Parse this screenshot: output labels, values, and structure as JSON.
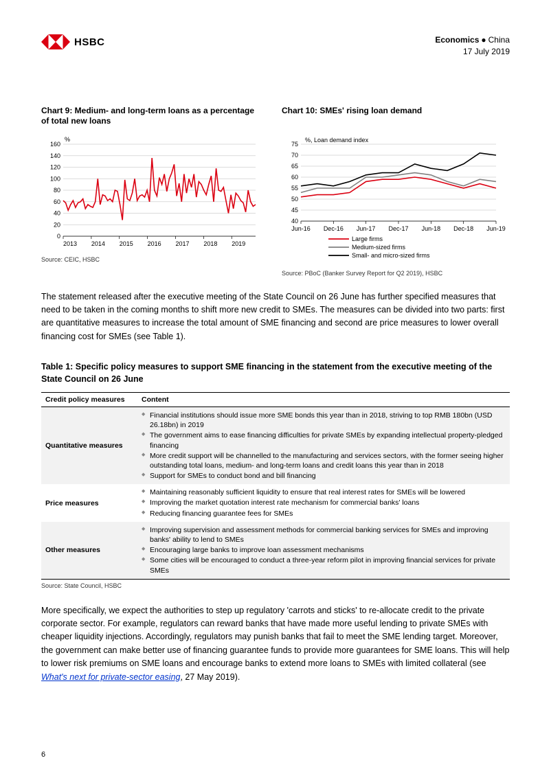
{
  "header": {
    "brand": "HSBC",
    "economics": "Economics",
    "country": "China",
    "date": "17 July 2019",
    "logo_colors": {
      "red": "#db0011",
      "white": "#ffffff"
    }
  },
  "chart9": {
    "title": "Chart 9: Medium- and long-term loans as a percentage of total new loans",
    "type": "line",
    "y_axis_label": "%",
    "ylim": [
      0,
      160
    ],
    "ytick_step": 20,
    "x_labels": [
      "2013",
      "2014",
      "2015",
      "2016",
      "2017",
      "2018",
      "2019"
    ],
    "line_color": "#db0011",
    "line_width": 1.6,
    "grid_color": "#cfcfcf",
    "background": "#ffffff",
    "axis_fontsize": 9,
    "values": [
      62,
      58,
      45,
      55,
      62,
      50,
      58,
      60,
      65,
      48,
      55,
      52,
      50,
      60,
      100,
      55,
      72,
      70,
      62,
      65,
      60,
      80,
      78,
      55,
      28,
      98,
      65,
      62,
      75,
      100,
      62,
      70,
      72,
      68,
      80,
      60,
      136,
      80,
      70,
      102,
      90,
      108,
      78,
      100,
      110,
      125,
      70,
      92,
      60,
      108,
      75,
      100,
      85,
      108,
      68,
      95,
      90,
      80,
      72,
      90,
      105,
      60,
      118,
      80,
      78,
      85,
      62,
      40,
      72,
      48,
      75,
      70,
      62,
      58,
      42,
      80,
      60,
      52,
      55
    ],
    "source": "Source: CEIC, HSBC"
  },
  "chart10": {
    "title": "Chart 10: SMEs' rising loan demand",
    "type": "line",
    "y_axis_label": "%, Loan demand index",
    "ylim": [
      40,
      75
    ],
    "ytick_step": 5,
    "x_labels": [
      "Jun-16",
      "Dec-16",
      "Jun-17",
      "Dec-17",
      "Jun-18",
      "Dec-18",
      "Jun-19"
    ],
    "grid_color": "#cfcfcf",
    "background": "#ffffff",
    "axis_fontsize": 9,
    "series": {
      "large": {
        "label": "Large firms",
        "color": "#db0011",
        "width": 1.6,
        "values": [
          51,
          52,
          52,
          53,
          58,
          59,
          59,
          60,
          59,
          57,
          55,
          57,
          55
        ]
      },
      "medium": {
        "label": "Medium-sized firms",
        "color": "#808080",
        "width": 1.6,
        "values": [
          53,
          55,
          55,
          55,
          60,
          60,
          61,
          62,
          61,
          58,
          56,
          59,
          58
        ]
      },
      "small": {
        "label": "Small- and micro-sized firms",
        "color": "#000000",
        "width": 1.6,
        "values": [
          56,
          57,
          56,
          58,
          61,
          62,
          62,
          66,
          64,
          63,
          66,
          71,
          70
        ]
      }
    },
    "source": "Source: PBoC (Banker Survey Report for Q2 2019), HSBC"
  },
  "para1": "The statement released after the executive meeting of the State Council on 26 June has further specified measures that need to be taken in the coming months to shift more new credit to SMEs. The measures can be divided into two parts: first are quantitative measures to increase the total amount of SME financing and second are price measures to lower overall financing cost for SMEs (see Table 1).",
  "table": {
    "title": "Table 1: Specific policy measures to support SME financing in the statement from the executive meeting of the State Council on 26 June",
    "columns": [
      "Credit policy measures",
      "Content"
    ],
    "rows": [
      {
        "measure": "Quantitative measures",
        "shade": true,
        "items": [
          "Financial institutions should issue more SME bonds this year than in 2018, striving to top RMB 180bn (USD 26.18bn) in 2019",
          "The government aims to ease financing difficulties for private SMEs by expanding intellectual property-pledged financing",
          "More credit support will be channelled to the manufacturing and services sectors, with the former seeing higher outstanding total loans, medium- and long-term loans and credit loans this year than in 2018",
          "Support for SMEs to conduct bond and bill financing"
        ]
      },
      {
        "measure": "Price measures",
        "shade": false,
        "items": [
          "Maintaining reasonably sufficient liquidity to ensure that real interest rates for SMEs will be lowered",
          "Improving the market quotation interest rate mechanism for commercial banks' loans",
          "Reducing financing guarantee fees for SMEs"
        ]
      },
      {
        "measure": "Other measures",
        "shade": true,
        "items": [
          "Improving supervision and assessment methods for commercial banking services for SMEs and improving banks' ability to lend to SMEs",
          "Encouraging large banks to improve loan assessment mechanisms",
          "Some cities will be encouraged to conduct a three-year reform pilot in improving financial services for private SMEs"
        ]
      }
    ],
    "source": "Source: State Council, HSBC"
  },
  "para2_pre": "More specifically, we expect the authorities to step up regulatory 'carrots and sticks' to re-allocate credit to the private corporate sector. For example, regulators can reward banks that have made more useful lending to private SMEs with cheaper liquidity injections. Accordingly, regulators may punish banks that fail to meet the SME lending target. Moreover, the government can make better use of financing guarantee funds to provide more guarantees for SME loans. This will help to lower risk premiums on SME loans and encourage banks to extend more loans to SMEs with limited collateral (see ",
  "para2_link": "What's next for private-sector easing",
  "para2_post": ", 27 May 2019).",
  "page_number": "6"
}
